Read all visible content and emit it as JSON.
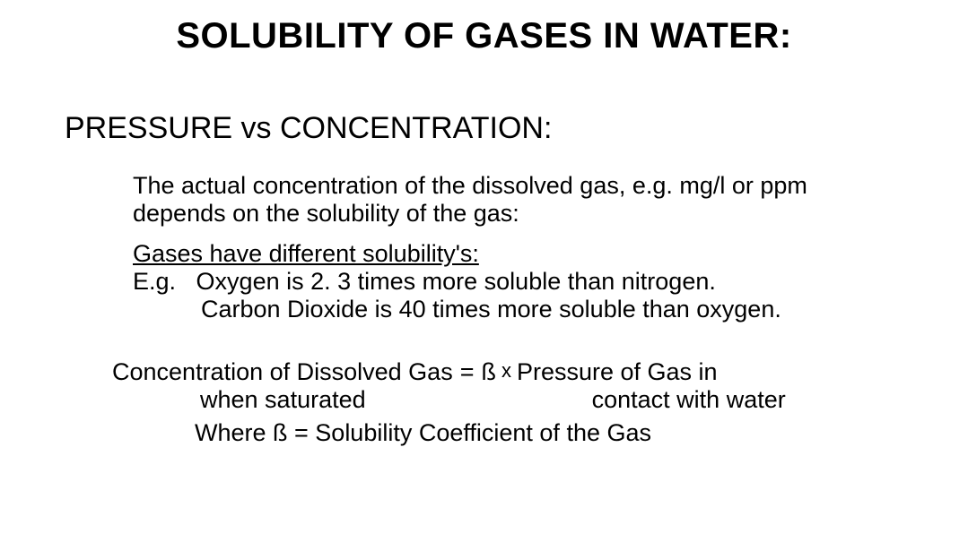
{
  "colors": {
    "background": "#ffffff",
    "text": "#000000"
  },
  "typography": {
    "title_fontsize": 40,
    "subtitle_fontsize": 34,
    "body_fontsize": 27,
    "font_family": "Arial"
  },
  "title": "SOLUBILITY OF GASES IN WATER:",
  "subtitle": "PRESSURE vs CONCENTRATION:",
  "intro": "The actual concentration of the dissolved gas, e.g. mg/l or ppm depends on the solubility of the gas:",
  "solubility": {
    "heading": "Gases have different solubility's:",
    "eg_label": "E.g.",
    "line1": "Oxygen is 2. 3 times more soluble than nitrogen.",
    "line2": "Carbon Dioxide is 40 times more soluble than oxygen."
  },
  "equation": {
    "lhs_top": "Concentration of Dissolved Gas",
    "equals": "=",
    "beta": "ß",
    "times": "x",
    "rhs_top": "Pressure of Gas in",
    "lhs_bottom": "when saturated",
    "rhs_bottom": "contact with water",
    "where": "Where ß = Solubility Coefficient of the Gas"
  }
}
